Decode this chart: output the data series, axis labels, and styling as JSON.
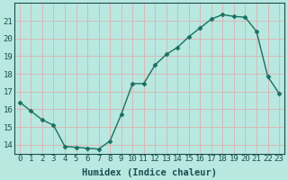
{
  "x": [
    0,
    1,
    2,
    3,
    4,
    5,
    6,
    7,
    8,
    9,
    10,
    11,
    12,
    13,
    14,
    15,
    16,
    17,
    18,
    19,
    20,
    21,
    22,
    23
  ],
  "y": [
    16.4,
    15.9,
    15.4,
    15.1,
    13.9,
    13.85,
    13.8,
    13.75,
    14.2,
    15.7,
    17.45,
    17.45,
    18.5,
    19.1,
    19.5,
    20.1,
    20.6,
    21.1,
    21.35,
    21.25,
    21.2,
    20.4,
    17.85,
    16.9
  ],
  "line_color": "#1a7060",
  "marker": "D",
  "marker_size": 2.5,
  "bg_color": "#b8e8e0",
  "grid_color": "#d8b8b8",
  "xlabel": "Humidex (Indice chaleur)",
  "ylim": [
    13.5,
    22.0
  ],
  "xlim": [
    -0.5,
    23.5
  ],
  "yticks": [
    14,
    15,
    16,
    17,
    18,
    19,
    20,
    21
  ],
  "xticks": [
    0,
    1,
    2,
    3,
    4,
    5,
    6,
    7,
    8,
    9,
    10,
    11,
    12,
    13,
    14,
    15,
    16,
    17,
    18,
    19,
    20,
    21,
    22,
    23
  ],
  "font_color": "#1a5050",
  "xlabel_fontsize": 7.5,
  "tick_fontsize": 6.5,
  "linewidth": 1.0
}
